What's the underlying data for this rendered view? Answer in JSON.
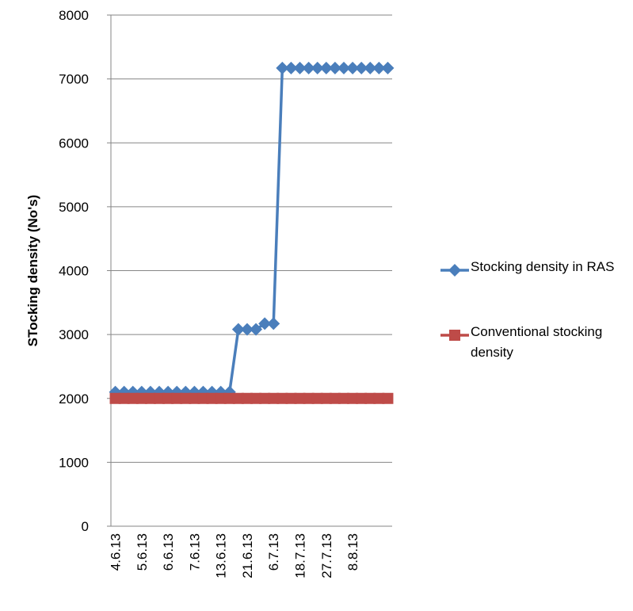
{
  "chart_data": {
    "type": "line",
    "y_label": "STocking density (No's)",
    "categories": [
      "4.6.13",
      null,
      null,
      "5.6.13",
      null,
      null,
      "6.6.13",
      null,
      null,
      "7.6.13",
      null,
      null,
      "13.6.13",
      null,
      null,
      "21.6.13",
      null,
      null,
      "6.7.13",
      null,
      null,
      "18.7.13",
      null,
      null,
      "27.7.13",
      null,
      null,
      "8.8.13",
      null,
      null,
      null,
      null
    ],
    "series": [
      {
        "name": "Stocking density in RAS",
        "color": "#4a7ebb",
        "marker": "diamond",
        "values": [
          2100,
          2100,
          2100,
          2100,
          2100,
          2100,
          2100,
          2100,
          2100,
          2100,
          2100,
          2100,
          2100,
          2100,
          3080,
          3080,
          3080,
          3170,
          3170,
          7170,
          7170,
          7170,
          7170,
          7170,
          7170,
          7170,
          7170,
          7170,
          7170,
          7170,
          7170,
          7170
        ]
      },
      {
        "name": "Conventional stocking density",
        "color": "#be4b48",
        "marker": "square",
        "values": [
          2000,
          2000,
          2000,
          2000,
          2000,
          2000,
          2000,
          2000,
          2000,
          2000,
          2000,
          2000,
          2000,
          2000,
          2000,
          2000,
          2000,
          2000,
          2000,
          2000,
          2000,
          2000,
          2000,
          2000,
          2000,
          2000,
          2000,
          2000,
          2000,
          2000,
          2000,
          2000
        ]
      }
    ],
    "ylim": [
      0,
      8000
    ],
    "yticks": [
      0,
      1000,
      2000,
      3000,
      4000,
      5000,
      6000,
      7000,
      8000
    ],
    "grid": true,
    "legend": "right"
  }
}
